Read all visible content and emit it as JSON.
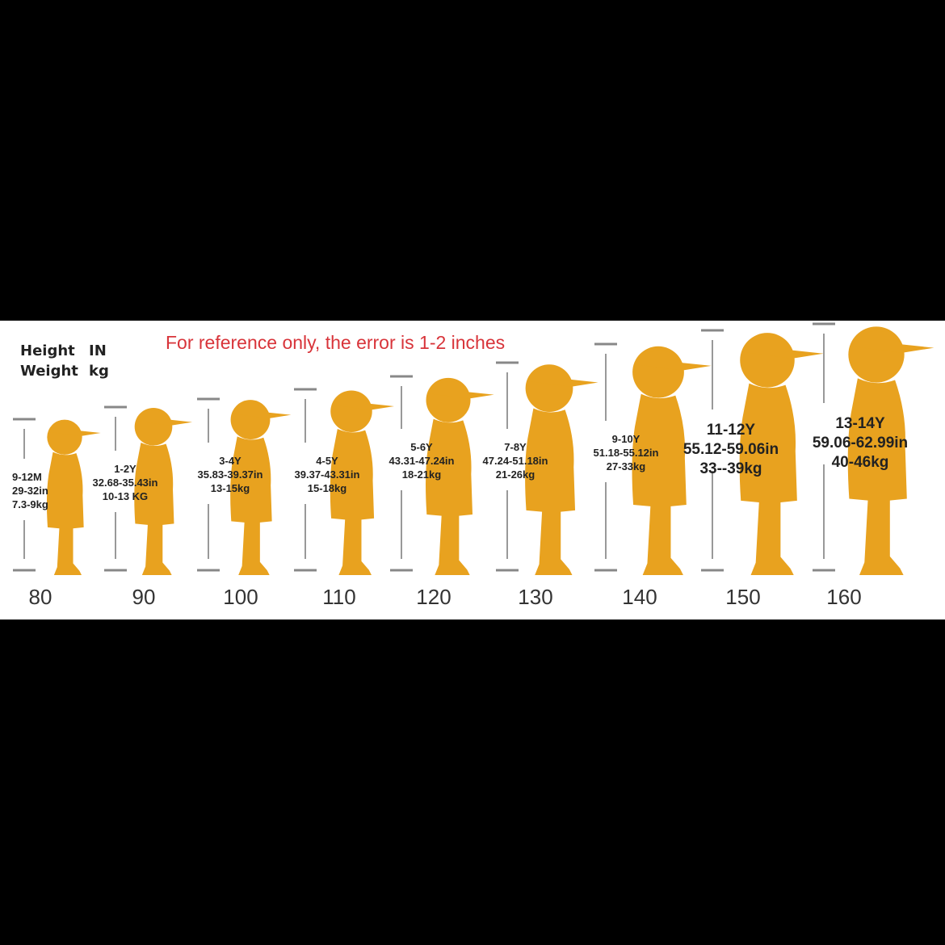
{
  "legend": {
    "height_label": "Height",
    "height_unit": "IN",
    "weight_label": "Weight",
    "weight_unit": "kg"
  },
  "note": "For reference only, the error is 1-2 inches",
  "silhouette_color": "#e8a21f",
  "note_color": "#d8343a",
  "sizes": [
    {
      "cm": "80",
      "age": "9-12M",
      "inches": "29-32in",
      "weight": "7.3-9kg"
    },
    {
      "cm": "90",
      "age": "1-2Y",
      "inches": "32.68-35.43in",
      "weight": "10-13 KG"
    },
    {
      "cm": "100",
      "age": "3-4Y",
      "inches": "35.83-39.37in",
      "weight": "13-15kg"
    },
    {
      "cm": "110",
      "age": "4-5Y",
      "inches": "39.37-43.31in",
      "weight": "15-18kg"
    },
    {
      "cm": "120",
      "age": "5-6Y",
      "inches": "43.31-47.24in",
      "weight": "18-21kg"
    },
    {
      "cm": "130",
      "age": "7-8Y",
      "inches": "47.24-51.18in",
      "weight": "21-26kg"
    },
    {
      "cm": "140",
      "age": "9-10Y",
      "inches": "51.18-55.12in",
      "weight": "27-33kg"
    },
    {
      "cm": "150",
      "age": "11-12Y",
      "inches": "55.12-59.06in",
      "weight": "33--39kg"
    },
    {
      "cm": "160",
      "age": "13-14Y",
      "inches": "59.06-62.99in",
      "weight": "40-46kg"
    }
  ]
}
